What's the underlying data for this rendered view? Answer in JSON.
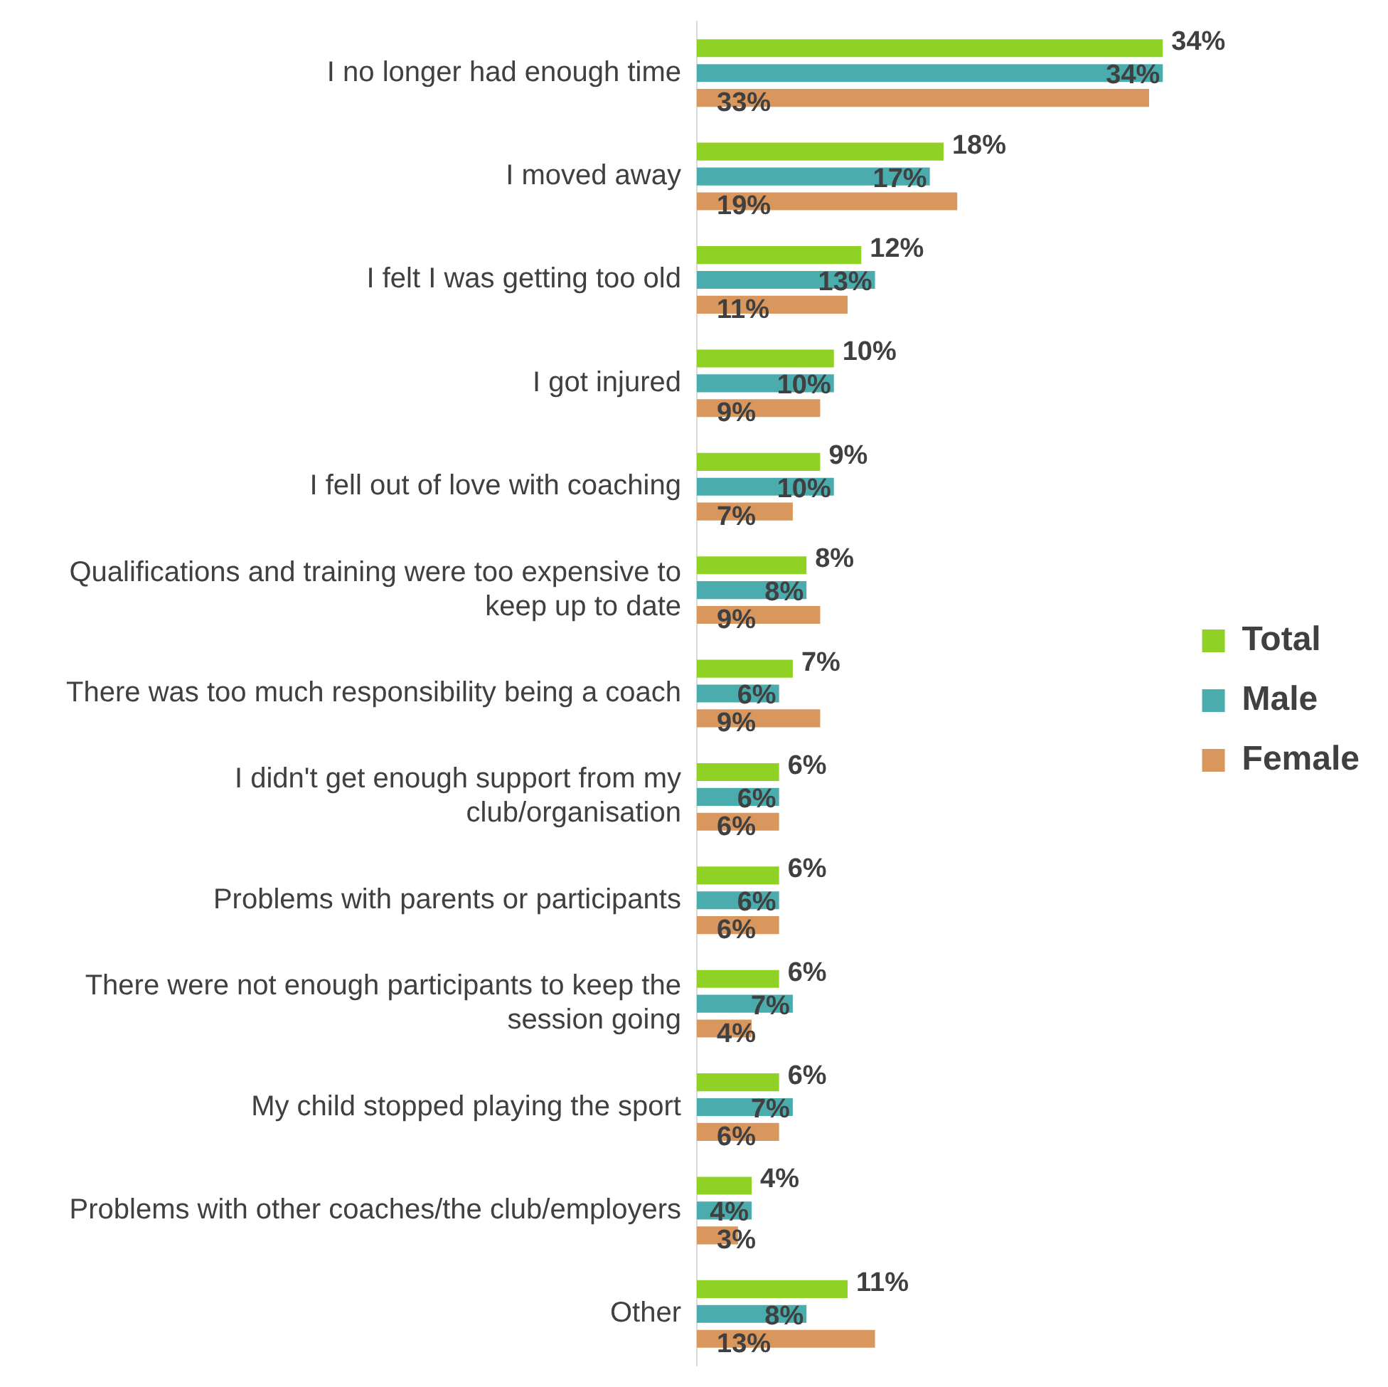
{
  "chart_data": {
    "type": "bar",
    "orientation": "horizontal",
    "categories": [
      "I no longer had enough time",
      "I moved away",
      "I felt I was getting too old",
      "I got injured",
      "I fell out of love with coaching",
      "Qualifications and training were too expensive to keep up to date",
      "There was too much responsibility being a coach",
      "I didn't get enough support from my club/organisation",
      "Problems with parents or participants",
      "There were not enough participants to keep the session going",
      "My child stopped playing the sport",
      "Problems with other coaches/the club/employers",
      "Other"
    ],
    "series": [
      {
        "name": "Total",
        "color": "#8fd124",
        "values": [
          34,
          18,
          12,
          10,
          9,
          8,
          7,
          6,
          6,
          6,
          6,
          4,
          11
        ],
        "value_labels": [
          "34%",
          "18%",
          "12%",
          "10%",
          "9%",
          "8%",
          "7%",
          "6%",
          "6%",
          "6%",
          "6%",
          "4%",
          "11%"
        ]
      },
      {
        "name": "Male",
        "color": "#4bacae",
        "values": [
          34,
          17,
          13,
          10,
          10,
          8,
          6,
          6,
          6,
          7,
          7,
          4,
          8
        ],
        "value_labels": [
          "34%",
          "17%",
          "13%",
          "10%",
          "10%",
          "8%",
          "6%",
          "6%",
          "6%",
          "7%",
          "7%",
          "4%",
          "8%"
        ]
      },
      {
        "name": "Female",
        "color": "#d9975e",
        "values": [
          33,
          19,
          11,
          9,
          7,
          9,
          9,
          6,
          6,
          4,
          6,
          3,
          13
        ],
        "value_labels": [
          "33%",
          "19%",
          "11%",
          "9%",
          "7%",
          "9%",
          "9%",
          "6%",
          "6%",
          "4%",
          "6%",
          "3%",
          "13%"
        ]
      }
    ],
    "legend": "right",
    "tick_labels": "y"
  }
}
